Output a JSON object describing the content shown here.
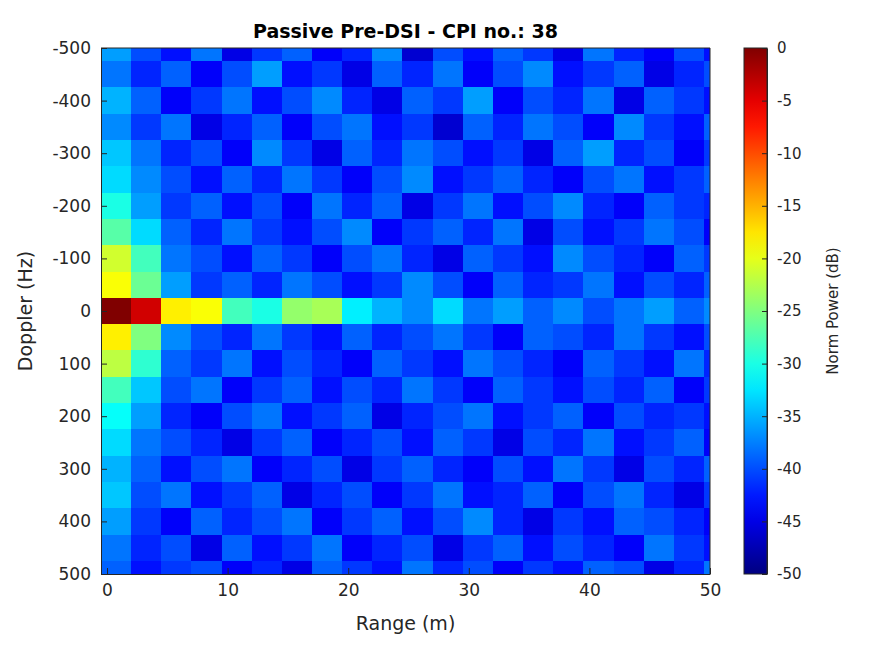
{
  "chart_data": {
    "type": "heatmap",
    "title": "Passive Pre-DSI - CPI no.: 38",
    "x_label": "Range (m)",
    "y_label": "Doppler (Hz)",
    "xlim": [
      -0.5,
      50
    ],
    "ylim": [
      -500,
      500
    ],
    "xticks": [
      0,
      10,
      20,
      30,
      40,
      50
    ],
    "yticks": [
      -500,
      -400,
      -300,
      -200,
      -100,
      0,
      100,
      200,
      300,
      400,
      500
    ],
    "x": [
      0.75,
      3.25,
      5.75,
      8.25,
      10.75,
      13.25,
      15.75,
      18.25,
      20.75,
      23.25,
      25.75,
      28.25,
      30.75,
      33.25,
      35.75,
      38.25,
      40.75,
      43.25,
      45.75,
      48.25,
      50.75
    ],
    "y": [
      -500,
      -450,
      -400,
      -350,
      -300,
      -250,
      -200,
      -150,
      -100,
      -50,
      0,
      50,
      100,
      150,
      200,
      250,
      300,
      350,
      400,
      450,
      500
    ],
    "z": [
      [
        -36,
        -40,
        -43,
        -38,
        -45,
        -41,
        -39,
        -44,
        -42,
        -37,
        -46,
        -40,
        -43,
        -39,
        -41,
        -45,
        -38,
        -42,
        -44,
        -40,
        -43
      ],
      [
        -38,
        -42,
        -39,
        -44,
        -40,
        -36,
        -43,
        -41,
        -45,
        -39,
        -42,
        -38,
        -44,
        -40,
        -37,
        -43,
        -41,
        -39,
        -45,
        -42,
        -40
      ],
      [
        -35,
        -39,
        -44,
        -41,
        -38,
        -43,
        -40,
        -37,
        -42,
        -45,
        -39,
        -41,
        -36,
        -44,
        -40,
        -42,
        -38,
        -45,
        -39,
        -41,
        -43
      ],
      [
        -37,
        -41,
        -38,
        -45,
        -42,
        -39,
        -44,
        -40,
        -38,
        -43,
        -41,
        -46,
        -39,
        -42,
        -38,
        -40,
        -44,
        -37,
        -41,
        -43,
        -39
      ],
      [
        -34,
        -38,
        -42,
        -40,
        -44,
        -37,
        -41,
        -45,
        -39,
        -42,
        -38,
        -40,
        -43,
        -41,
        -45,
        -39,
        -36,
        -42,
        -40,
        -44,
        -41
      ],
      [
        -33,
        -37,
        -40,
        -43,
        -39,
        -42,
        -38,
        -41,
        -44,
        -40,
        -37,
        -43,
        -41,
        -39,
        -42,
        -44,
        -40,
        -38,
        -43,
        -41,
        -39
      ],
      [
        -30,
        -36,
        -41,
        -39,
        -43,
        -40,
        -44,
        -38,
        -42,
        -39,
        -45,
        -41,
        -38,
        -43,
        -40,
        -37,
        -42,
        -44,
        -39,
        -41,
        -42
      ],
      [
        -27,
        -33,
        -39,
        -42,
        -38,
        -41,
        -43,
        -40,
        -37,
        -44,
        -41,
        -39,
        -42,
        -38,
        -45,
        -40,
        -43,
        -41,
        -38,
        -40,
        -44
      ],
      [
        -21,
        -28,
        -38,
        -40,
        -43,
        -39,
        -41,
        -44,
        -40,
        -38,
        -42,
        -45,
        -39,
        -41,
        -43,
        -37,
        -40,
        -42,
        -44,
        -39,
        -41
      ],
      [
        -19,
        -26,
        -36,
        -41,
        -39,
        -42,
        -38,
        -40,
        -43,
        -41,
        -37,
        -40,
        -44,
        -39,
        -42,
        -41,
        -38,
        -43,
        -40,
        -42,
        -39
      ],
      [
        0,
        -4,
        -18,
        -19,
        -28,
        -30,
        -24,
        -23,
        -32,
        -35,
        -37,
        -33,
        -38,
        -36,
        -39,
        -37,
        -40,
        -38,
        -36,
        -39,
        -37
      ],
      [
        -18,
        -25,
        -37,
        -40,
        -42,
        -38,
        -41,
        -43,
        -39,
        -42,
        -40,
        -38,
        -41,
        -44,
        -39,
        -40,
        -42,
        -38,
        -41,
        -43,
        -40
      ],
      [
        -22,
        -29,
        -39,
        -41,
        -38,
        -43,
        -40,
        -42,
        -44,
        -39,
        -41,
        -43,
        -38,
        -40,
        -42,
        -44,
        -39,
        -41,
        -43,
        -38,
        -42
      ],
      [
        -28,
        -34,
        -40,
        -38,
        -44,
        -41,
        -39,
        -43,
        -40,
        -42,
        -38,
        -41,
        -44,
        -39,
        -41,
        -43,
        -40,
        -42,
        -39,
        -44,
        -41
      ],
      [
        -31,
        -36,
        -42,
        -44,
        -40,
        -38,
        -43,
        -41,
        -39,
        -45,
        -42,
        -40,
        -38,
        -43,
        -41,
        -39,
        -44,
        -40,
        -42,
        -41,
        -43
      ],
      [
        -33,
        -38,
        -40,
        -42,
        -45,
        -41,
        -39,
        -44,
        -42,
        -40,
        -43,
        -39,
        -41,
        -45,
        -40,
        -42,
        -38,
        -43,
        -41,
        -39,
        -44
      ],
      [
        -35,
        -39,
        -43,
        -40,
        -38,
        -44,
        -42,
        -40,
        -45,
        -41,
        -39,
        -42,
        -44,
        -40,
        -43,
        -38,
        -41,
        -45,
        -40,
        -42,
        -39
      ],
      [
        -34,
        -40,
        -38,
        -43,
        -41,
        -39,
        -45,
        -42,
        -40,
        -44,
        -41,
        -38,
        -43,
        -42,
        -39,
        -44,
        -40,
        -38,
        -42,
        -45,
        -41
      ],
      [
        -36,
        -41,
        -44,
        -39,
        -42,
        -40,
        -38,
        -44,
        -41,
        -39,
        -43,
        -40,
        -37,
        -42,
        -45,
        -41,
        -43,
        -39,
        -40,
        -42,
        -44
      ],
      [
        -38,
        -42,
        -40,
        -45,
        -39,
        -43,
        -41,
        -38,
        -44,
        -42,
        -40,
        -45,
        -41,
        -39,
        -43,
        -40,
        -42,
        -44,
        -38,
        -41,
        -43
      ],
      [
        -39,
        -43,
        -41,
        -40,
        -44,
        -42,
        -45,
        -39,
        -41,
        -43,
        -38,
        -42,
        -40,
        -44,
        -41,
        -43,
        -39,
        -40,
        -45,
        -42,
        -38
      ]
    ],
    "colorbar": {
      "label": "Norm Power (dB)",
      "range": [
        -50,
        0
      ],
      "ticks": [
        0,
        -5,
        -10,
        -15,
        -20,
        -25,
        -30,
        -35,
        -40,
        -45,
        -50
      ]
    }
  }
}
